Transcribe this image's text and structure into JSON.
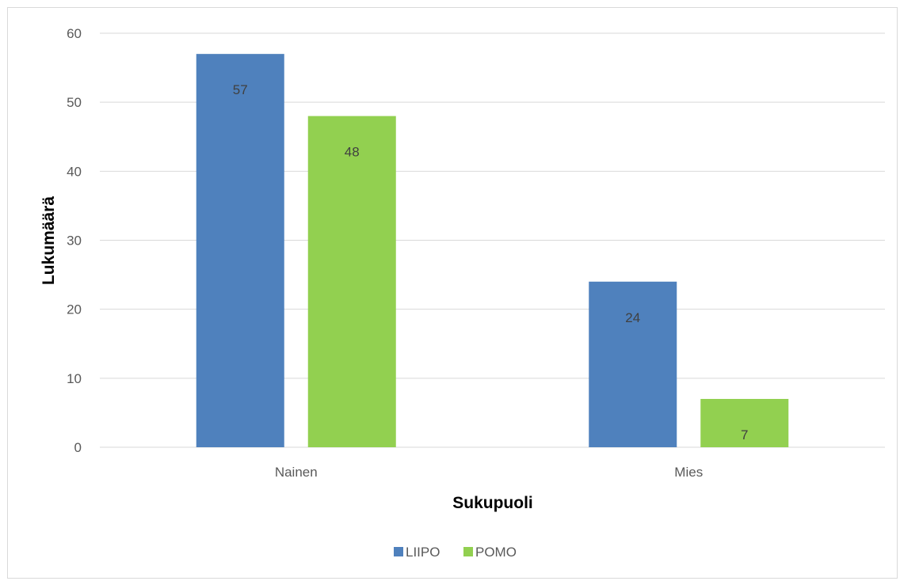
{
  "chart_data": {
    "type": "bar",
    "title": "",
    "xlabel": "Sukupuoli",
    "ylabel": "Lukumäärä",
    "categories": [
      "Nainen",
      "Mies"
    ],
    "series": [
      {
        "name": "LIIPO",
        "values": [
          57,
          24
        ],
        "color": "#4f81bd"
      },
      {
        "name": "POMO",
        "values": [
          48,
          7
        ],
        "color": "#92d050"
      }
    ],
    "ylim": [
      0,
      60
    ],
    "yticks": [
      0,
      10,
      20,
      30,
      40,
      50,
      60
    ],
    "ytick_labels": [
      "0",
      "10",
      "20",
      "30",
      "40",
      "50",
      "60"
    ],
    "grid": true,
    "legend_position": "bottom",
    "data_labels": true
  },
  "colors": {
    "gridline": "#d9d9d9",
    "axis_line": "#d9d9d9",
    "tick_text": "#595959",
    "data_label_text": "#404040"
  }
}
